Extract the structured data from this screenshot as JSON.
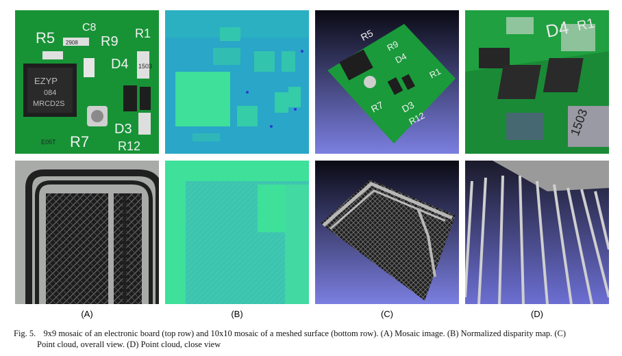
{
  "figure": {
    "number_label": "Fig. 5.",
    "caption_line1": "9x9 mosaic of an electronic board (top row) and 10x10 mosaic of a meshed surface (bottom row). (A) Mosaic image. (B) Normalized disparity map. (C)",
    "caption_line2": "Point cloud, overall view. (D) Point cloud, close view",
    "columns": [
      {
        "label": "(A)"
      },
      {
        "label": "(B)"
      },
      {
        "label": "(C)"
      },
      {
        "label": "(D)"
      }
    ],
    "pcb_silkscreen": {
      "tile_a": [
        "R5",
        "R9",
        "D4",
        "R1",
        "D3",
        "R12",
        "R7",
        "C8",
        "2908",
        "EZYP",
        "084",
        "MRCD2S",
        "E05T",
        "1503"
      ],
      "tile_c": [
        "R5",
        "R9",
        "D4",
        "D3",
        "R12",
        "R7",
        "R1"
      ],
      "tile_d": [
        "D4",
        "R1",
        "1503"
      ]
    },
    "colors": {
      "pcb_green": "#1a9a3a",
      "disparity_blue": "#2aa6c8",
      "disparity_green": "#3ee09a",
      "cloud_bg_top": "#0a0a14",
      "cloud_bg_bottom": "#7b7fe0"
    }
  }
}
